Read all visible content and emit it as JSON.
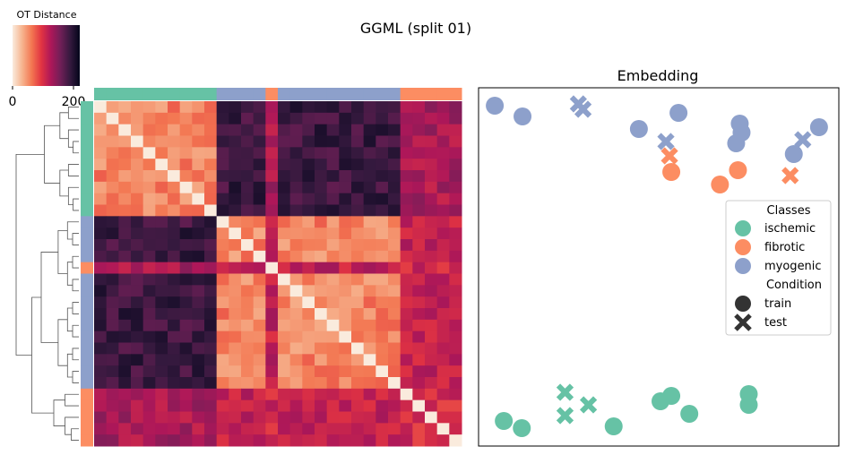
{
  "suptitle": "GGML (split 01)",
  "colorbar": {
    "label": "OT Distance",
    "ticks": [
      "0",
      "200"
    ],
    "range": [
      0,
      220
    ],
    "stops": [
      "#faebdd",
      "#f6b48f",
      "#f37651",
      "#e13342",
      "#ad1759",
      "#701f57",
      "#35193e",
      "#03051a"
    ]
  },
  "class_colors": {
    "ischemic": "#66c2a5",
    "fibrotic": "#fc8d62",
    "myogenic": "#8da0cb"
  },
  "chart_data": [
    {
      "type": "heatmap",
      "title": "",
      "row_classes": [
        "ischemic",
        "ischemic",
        "ischemic",
        "ischemic",
        "ischemic",
        "ischemic",
        "ischemic",
        "ischemic",
        "ischemic",
        "ischemic",
        "myogenic",
        "myogenic",
        "myogenic",
        "myogenic",
        "fibrotic",
        "myogenic",
        "myogenic",
        "myogenic",
        "myogenic",
        "myogenic",
        "myogenic",
        "myogenic",
        "myogenic",
        "myogenic",
        "myogenic",
        "fibrotic",
        "fibrotic",
        "fibrotic",
        "fibrotic",
        "fibrotic"
      ],
      "col_classes": [
        "ischemic",
        "ischemic",
        "ischemic",
        "ischemic",
        "ischemic",
        "ischemic",
        "ischemic",
        "ischemic",
        "ischemic",
        "ischemic",
        "myogenic",
        "myogenic",
        "myogenic",
        "myogenic",
        "fibrotic",
        "myogenic",
        "myogenic",
        "myogenic",
        "myogenic",
        "myogenic",
        "myogenic",
        "myogenic",
        "myogenic",
        "myogenic",
        "myogenic",
        "fibrotic",
        "fibrotic",
        "fibrotic",
        "fibrotic",
        "fibrotic"
      ],
      "value_range": [
        0,
        220
      ],
      "dendrogram": "hierarchical clustering of rows"
    },
    {
      "type": "scatter",
      "title": "Embedding",
      "xlabel": "",
      "ylabel": "",
      "xlim": [
        0,
        100
      ],
      "ylim": [
        0,
        100
      ],
      "grid": false,
      "legend": {
        "placement": "center-right",
        "class_title": "Classes",
        "classes": [
          "ischemic",
          "fibrotic",
          "myogenic"
        ],
        "condition_title": "Condition",
        "conditions": [
          "train",
          "test"
        ]
      },
      "points": [
        {
          "x": 4.5,
          "y": 95.0,
          "class": "myogenic",
          "condition": "train"
        },
        {
          "x": 12.2,
          "y": 92.0,
          "class": "myogenic",
          "condition": "train"
        },
        {
          "x": 27.7,
          "y": 95.5,
          "class": "myogenic",
          "condition": "test"
        },
        {
          "x": 29.0,
          "y": 94.0,
          "class": "myogenic",
          "condition": "test"
        },
        {
          "x": 44.5,
          "y": 88.5,
          "class": "myogenic",
          "condition": "train"
        },
        {
          "x": 55.5,
          "y": 93.0,
          "class": "myogenic",
          "condition": "train"
        },
        {
          "x": 52.0,
          "y": 85.0,
          "class": "myogenic",
          "condition": "test"
        },
        {
          "x": 72.5,
          "y": 90.0,
          "class": "myogenic",
          "condition": "train"
        },
        {
          "x": 73.0,
          "y": 87.5,
          "class": "myogenic",
          "condition": "train"
        },
        {
          "x": 71.5,
          "y": 84.5,
          "class": "myogenic",
          "condition": "train"
        },
        {
          "x": 94.5,
          "y": 89.0,
          "class": "myogenic",
          "condition": "train"
        },
        {
          "x": 90.0,
          "y": 85.5,
          "class": "myogenic",
          "condition": "test"
        },
        {
          "x": 87.5,
          "y": 81.5,
          "class": "myogenic",
          "condition": "train"
        },
        {
          "x": 53.0,
          "y": 81.0,
          "class": "fibrotic",
          "condition": "test"
        },
        {
          "x": 53.5,
          "y": 76.5,
          "class": "fibrotic",
          "condition": "train"
        },
        {
          "x": 72.0,
          "y": 77.0,
          "class": "fibrotic",
          "condition": "train"
        },
        {
          "x": 67.0,
          "y": 73.0,
          "class": "fibrotic",
          "condition": "train"
        },
        {
          "x": 86.5,
          "y": 75.5,
          "class": "fibrotic",
          "condition": "test"
        },
        {
          "x": 24.0,
          "y": 15.0,
          "class": "ischemic",
          "condition": "test"
        },
        {
          "x": 30.5,
          "y": 11.5,
          "class": "ischemic",
          "condition": "test"
        },
        {
          "x": 24.0,
          "y": 8.5,
          "class": "ischemic",
          "condition": "test"
        },
        {
          "x": 7.0,
          "y": 7.0,
          "class": "ischemic",
          "condition": "train"
        },
        {
          "x": 12.0,
          "y": 5.0,
          "class": "ischemic",
          "condition": "train"
        },
        {
          "x": 37.5,
          "y": 5.5,
          "class": "ischemic",
          "condition": "train"
        },
        {
          "x": 53.5,
          "y": 14.0,
          "class": "ischemic",
          "condition": "train"
        },
        {
          "x": 50.5,
          "y": 12.5,
          "class": "ischemic",
          "condition": "train"
        },
        {
          "x": 58.5,
          "y": 9.0,
          "class": "ischemic",
          "condition": "train"
        },
        {
          "x": 75.0,
          "y": 14.5,
          "class": "ischemic",
          "condition": "train"
        },
        {
          "x": 75.0,
          "y": 11.5,
          "class": "ischemic",
          "condition": "train"
        }
      ]
    }
  ]
}
